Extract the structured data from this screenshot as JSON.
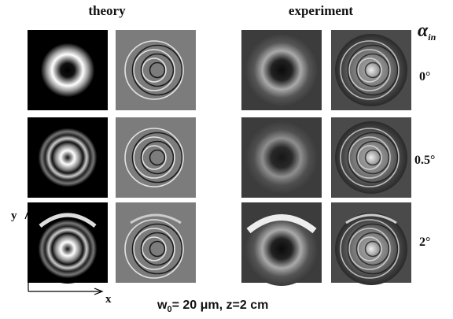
{
  "headers": {
    "theory": "theory",
    "experiment": "experiment"
  },
  "angle_label": {
    "symbol": "α",
    "subscript": "in"
  },
  "rows": [
    "0°",
    "0.5°",
    "2°"
  ],
  "axes": {
    "y": "y",
    "x": "x"
  },
  "caption": {
    "symbol": "w",
    "subscript": "0",
    "text": "= 20 μm,  z=2 cm"
  }
}
